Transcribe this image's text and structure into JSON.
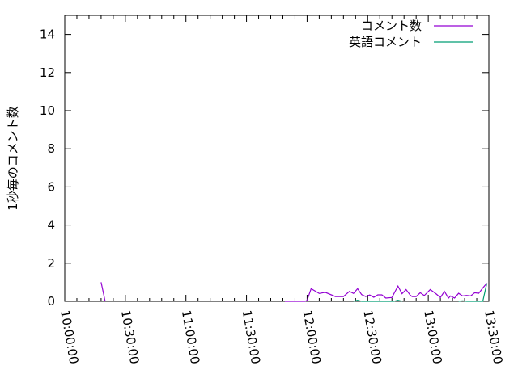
{
  "chart_data": {
    "type": "line",
    "title": "",
    "xlabel": "",
    "ylabel": "1秒毎のコメント数",
    "xlim": [
      "10:00:00",
      "13:30:00"
    ],
    "ylim": [
      0,
      15
    ],
    "xticks": [
      "10:00:00",
      "10:30:00",
      "11:00:00",
      "11:30:00",
      "12:00:00",
      "12:30:00",
      "13:00:00",
      "13:30:00"
    ],
    "yticks": [
      0,
      2,
      4,
      6,
      8,
      10,
      12,
      14
    ],
    "grid": false,
    "legend_placement": "top-right",
    "series": [
      {
        "name": "コメント数",
        "color": "#9400d3",
        "points": [
          [
            "10:18:00",
            1.0
          ],
          [
            "10:20:00",
            0
          ],
          [
            "11:49:00",
            0
          ],
          [
            "11:59:00",
            0
          ],
          [
            "12:00:00",
            0.05
          ],
          [
            "12:02:00",
            0.66
          ],
          [
            "12:06:00",
            0.41
          ],
          [
            "12:09:00",
            0.47
          ],
          [
            "12:14:00",
            0.25
          ],
          [
            "12:18:00",
            0.25
          ],
          [
            "12:21:00",
            0.52
          ],
          [
            "12:23:00",
            0.41
          ],
          [
            "12:25:00",
            0.66
          ],
          [
            "12:27:00",
            0.35
          ],
          [
            "12:29:00",
            0.25
          ],
          [
            "12:31:00",
            0.33
          ],
          [
            "12:33:00",
            0.21
          ],
          [
            "12:35:00",
            0.34
          ],
          [
            "12:37:00",
            0.34
          ],
          [
            "12:39:00",
            0.17
          ],
          [
            "12:42:00",
            0.2
          ],
          [
            "12:45:00",
            0.8
          ],
          [
            "12:47:00",
            0.4
          ],
          [
            "12:49:00",
            0.62
          ],
          [
            "12:51:00",
            0.33
          ],
          [
            "12:52:00",
            0.25
          ],
          [
            "12:54:00",
            0.25
          ],
          [
            "12:56:00",
            0.45
          ],
          [
            "12:58:00",
            0.3
          ],
          [
            "13:01:00",
            0.62
          ],
          [
            "13:04:00",
            0.38
          ],
          [
            "13:06:00",
            0.2
          ],
          [
            "13:08:00",
            0.52
          ],
          [
            "13:10:00",
            0.17
          ],
          [
            "13:11:00",
            0.28
          ],
          [
            "13:13:00",
            0.17
          ],
          [
            "13:15:00",
            0.42
          ],
          [
            "13:17:00",
            0.28
          ],
          [
            "13:19:00",
            0.31
          ],
          [
            "13:21:00",
            0.28
          ],
          [
            "13:23:00",
            0.45
          ],
          [
            "13:25:00",
            0.42
          ],
          [
            "13:27:00",
            0.7
          ],
          [
            "13:29:00",
            0.95
          ]
        ]
      },
      {
        "name": "英語コメント",
        "color": "#009e73",
        "points": [
          [
            "12:00:00",
            0
          ],
          [
            "12:23:00",
            0
          ],
          [
            "12:25:00",
            0.06
          ],
          [
            "12:27:00",
            0
          ],
          [
            "12:43:00",
            0
          ],
          [
            "12:45:00",
            0.06
          ],
          [
            "12:47:00",
            0
          ],
          [
            "13:15:00",
            0
          ],
          [
            "13:17:00",
            0.03
          ],
          [
            "13:19:00",
            0
          ],
          [
            "13:27:00",
            0
          ],
          [
            "13:29:00",
            0.95
          ]
        ]
      }
    ]
  }
}
